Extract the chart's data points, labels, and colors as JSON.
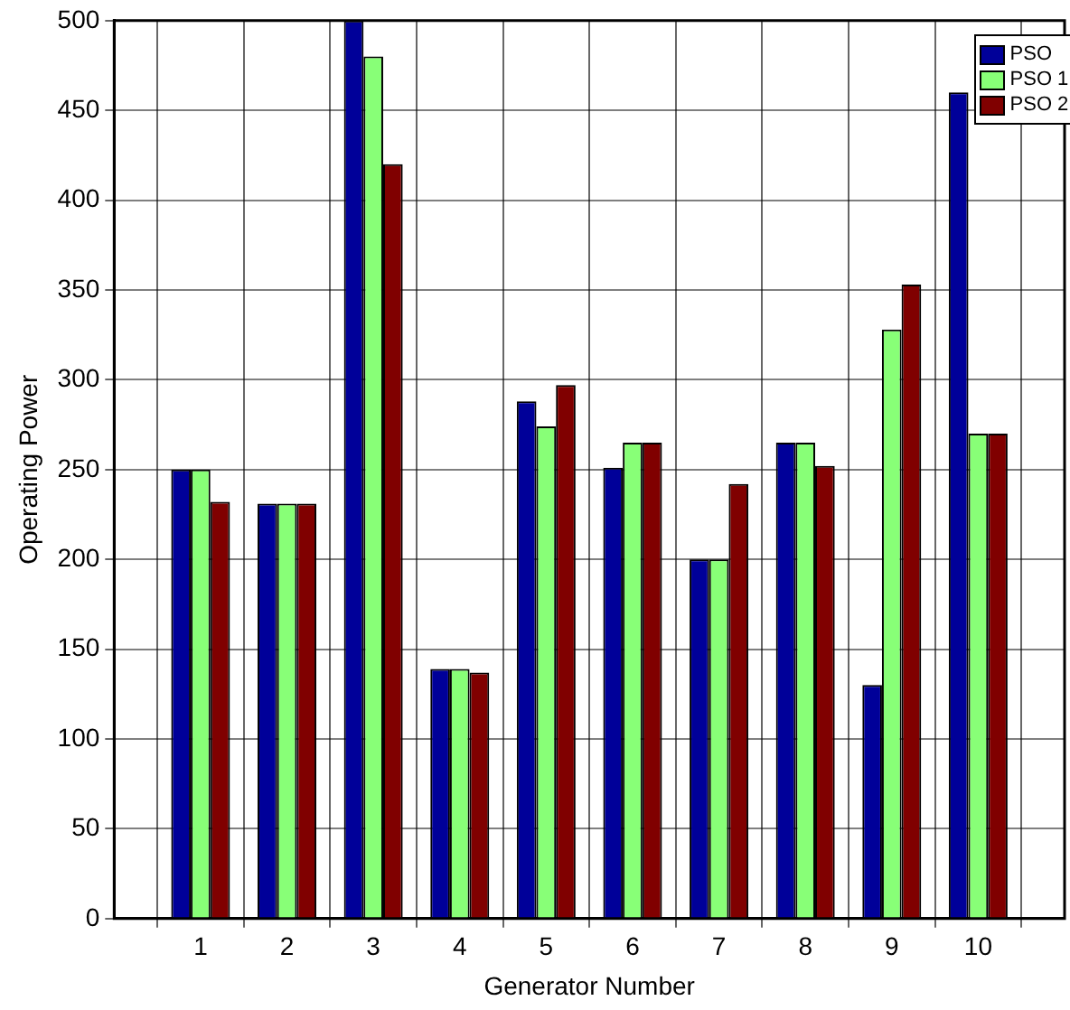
{
  "chart_data": {
    "type": "bar",
    "xlabel": "Generator Number",
    "ylabel": "Operating Power",
    "x": [
      1,
      2,
      3,
      4,
      5,
      6,
      7,
      8,
      9,
      10
    ],
    "xlim": [
      0,
      11
    ],
    "xticks": [
      1,
      2,
      3,
      4,
      5,
      6,
      7,
      8,
      9,
      10
    ],
    "ylim": [
      0,
      500
    ],
    "yticks": [
      0,
      50,
      100,
      150,
      200,
      250,
      300,
      350,
      400,
      450,
      500
    ],
    "grid": true,
    "legend": "top right",
    "series": [
      {
        "name": "PSO",
        "color": "#000099",
        "values": [
          250,
          231,
          500,
          139,
          288,
          251,
          200,
          265,
          130,
          460
        ]
      },
      {
        "name": "PSO 1",
        "color": "#88ff77",
        "values": [
          250,
          231,
          480,
          139,
          274,
          265,
          200,
          265,
          328,
          270
        ]
      },
      {
        "name": "PSO 2",
        "color": "#800000",
        "values": [
          232,
          231,
          420,
          137,
          297,
          265,
          242,
          252,
          353,
          270
        ]
      }
    ]
  }
}
